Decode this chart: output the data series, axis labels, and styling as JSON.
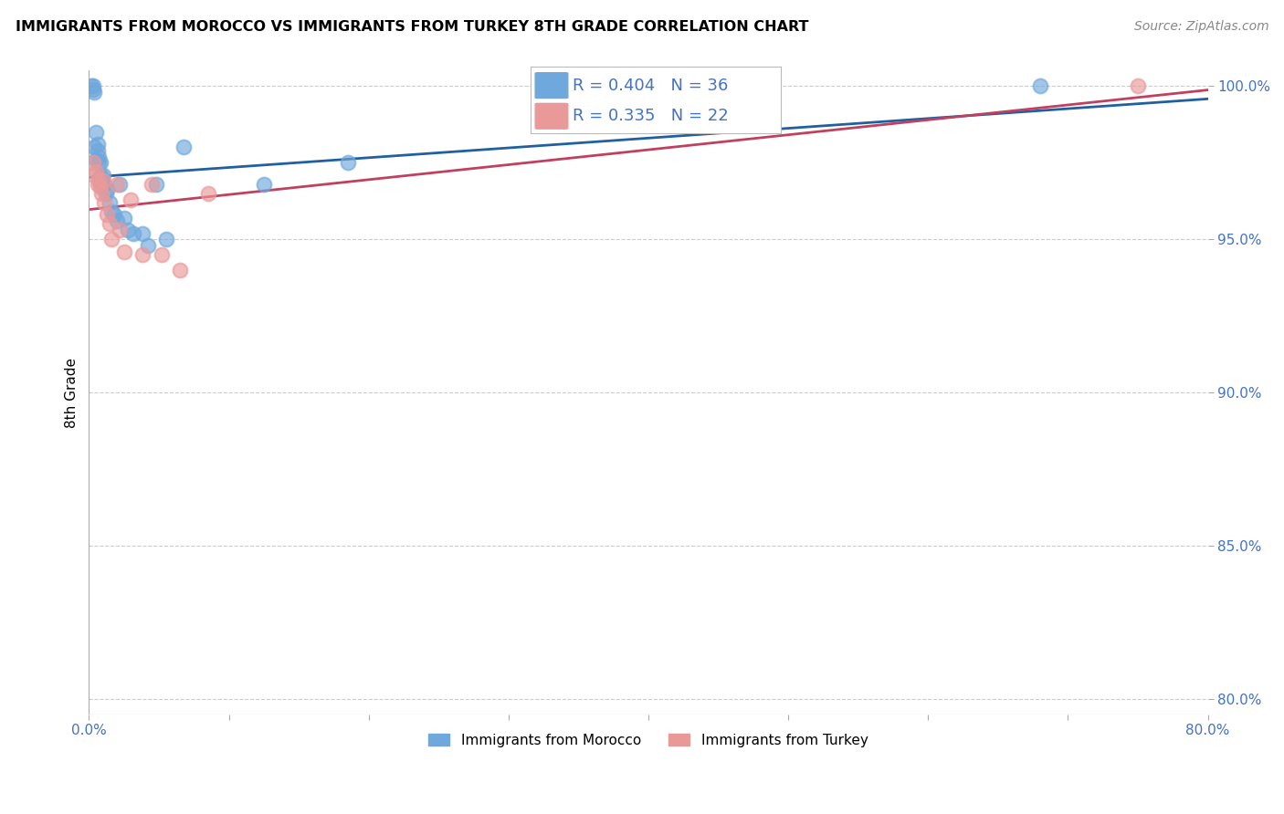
{
  "title": "IMMIGRANTS FROM MOROCCO VS IMMIGRANTS FROM TURKEY 8TH GRADE CORRELATION CHART",
  "source": "Source: ZipAtlas.com",
  "ylabel": "8th Grade",
  "xlim": [
    0.0,
    0.8
  ],
  "ylim": [
    0.795,
    1.005
  ],
  "xticks": [
    0.0,
    0.1,
    0.2,
    0.3,
    0.4,
    0.5,
    0.6,
    0.7,
    0.8
  ],
  "xticklabels": [
    "0.0%",
    "",
    "",
    "",
    "",
    "",
    "",
    "",
    "80.0%"
  ],
  "yticks": [
    0.8,
    0.85,
    0.9,
    0.95,
    1.0
  ],
  "yticklabels": [
    "80.0%",
    "85.0%",
    "90.0%",
    "95.0%",
    "100.0%"
  ],
  "morocco_color": "#6fa8dc",
  "turkey_color": "#ea9999",
  "morocco_line_color": "#2060a0",
  "turkey_line_color": "#c04060",
  "morocco_R": 0.404,
  "morocco_N": 36,
  "turkey_R": 0.335,
  "turkey_N": 22,
  "morocco_x": [
    0.002,
    0.003,
    0.003,
    0.004,
    0.004,
    0.005,
    0.005,
    0.006,
    0.006,
    0.007,
    0.007,
    0.008,
    0.008,
    0.009,
    0.009,
    0.01,
    0.01,
    0.011,
    0.012,
    0.013,
    0.015,
    0.016,
    0.018,
    0.02,
    0.022,
    0.025,
    0.028,
    0.032,
    0.038,
    0.042,
    0.048,
    0.055,
    0.068,
    0.125,
    0.185,
    0.68
  ],
  "morocco_y": [
    1.0,
    0.999,
    1.0,
    0.98,
    0.998,
    0.976,
    0.985,
    0.979,
    0.981,
    0.977,
    0.975,
    0.975,
    0.971,
    0.97,
    0.968,
    0.971,
    0.968,
    0.968,
    0.965,
    0.966,
    0.962,
    0.959,
    0.958,
    0.956,
    0.968,
    0.957,
    0.953,
    0.952,
    0.952,
    0.948,
    0.968,
    0.95,
    0.98,
    0.968,
    0.975,
    1.0
  ],
  "turkey_x": [
    0.003,
    0.004,
    0.005,
    0.006,
    0.007,
    0.008,
    0.009,
    0.01,
    0.011,
    0.013,
    0.015,
    0.016,
    0.02,
    0.022,
    0.025,
    0.03,
    0.038,
    0.045,
    0.052,
    0.065,
    0.085,
    0.75
  ],
  "turkey_y": [
    0.975,
    0.971,
    0.972,
    0.968,
    0.969,
    0.967,
    0.965,
    0.969,
    0.962,
    0.958,
    0.955,
    0.95,
    0.968,
    0.953,
    0.946,
    0.963,
    0.945,
    0.968,
    0.945,
    0.94,
    0.965,
    1.0
  ],
  "legend_label_morocco": "Immigrants from Morocco",
  "legend_label_turkey": "Immigrants from Turkey",
  "background_color": "#ffffff",
  "grid_color": "#cccccc"
}
